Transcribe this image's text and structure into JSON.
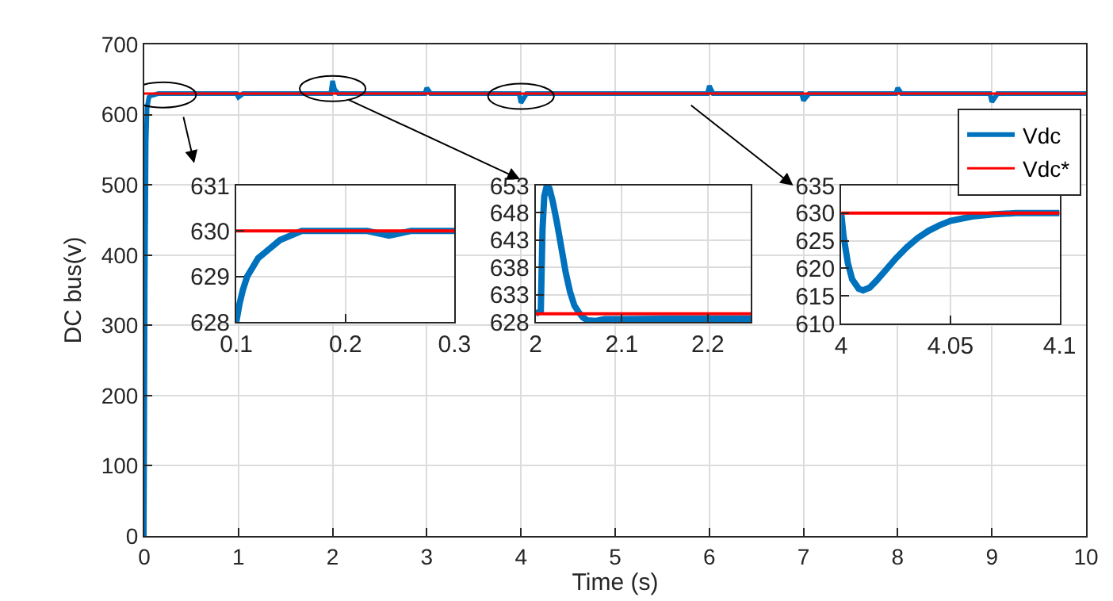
{
  "chart_data": [
    {
      "type": "line",
      "xlabel": "Time (s)",
      "ylabel": "DC bus(v)",
      "xlim": [
        0,
        10
      ],
      "xticks": [
        0,
        1,
        2,
        3,
        4,
        5,
        6,
        7,
        8,
        9,
        10
      ],
      "ylim": [
        0,
        700
      ],
      "yticks": [
        0,
        100,
        200,
        300,
        400,
        500,
        600,
        700
      ],
      "grid": true,
      "legend": "top right",
      "series": [
        {
          "name": "Vdc",
          "color": "#0072bd",
          "x": [
            0,
            0.01,
            0.02,
            0.03,
            0.05,
            0.07,
            0.1,
            0.15,
            0.98,
            1.0,
            1.05,
            1.98,
            2.0,
            2.02,
            2.06,
            2.98,
            3.0,
            3.04,
            3.98,
            4.0,
            4.01,
            4.06,
            5.98,
            6.0,
            6.04,
            6.98,
            7.0,
            7.01,
            7.06,
            7.98,
            8.0,
            8.04,
            8.98,
            9.0,
            9.01,
            9.06,
            10
          ],
          "values": [
            0,
            350,
            560,
            610,
            625,
            627,
            628,
            630,
            630,
            625,
            630,
            630,
            648,
            636,
            630,
            630,
            638,
            630,
            630,
            617,
            619,
            630,
            630,
            641,
            630,
            630,
            620,
            622,
            630,
            630,
            638,
            630,
            630,
            618,
            620,
            630,
            630
          ]
        },
        {
          "name": "Vdc*",
          "color": "#ff0000",
          "x": [
            0,
            10
          ],
          "values": [
            630,
            630
          ]
        }
      ]
    },
    {
      "type": "line",
      "xlim": [
        0.1,
        0.3
      ],
      "xticks": [
        0.1,
        0.2,
        0.3
      ],
      "ylim": [
        628,
        631
      ],
      "yticks": [
        628,
        629,
        630,
        631
      ],
      "grid": true,
      "series": [
        {
          "color": "#0072bd",
          "x": [
            0.1,
            0.103,
            0.106,
            0.11,
            0.115,
            0.12,
            0.13,
            0.14,
            0.15,
            0.16,
            0.18,
            0.2,
            0.22,
            0.24,
            0.26,
            0.28,
            0.3
          ],
          "values": [
            628.0,
            628.4,
            628.7,
            629.0,
            629.2,
            629.4,
            629.6,
            629.8,
            629.9,
            630.0,
            630.0,
            630.0,
            630.0,
            629.9,
            630.0,
            630.0,
            630.0
          ]
        },
        {
          "color": "#ff0000",
          "x": [
            0.1,
            0.3
          ],
          "values": [
            630,
            630
          ]
        }
      ]
    },
    {
      "type": "line",
      "xlim": [
        2,
        2.25
      ],
      "xticks": [
        2,
        2.1,
        2.2
      ],
      "ylim": [
        628,
        653
      ],
      "yticks": [
        628,
        633,
        638,
        643,
        648,
        653
      ],
      "grid": true,
      "series": [
        {
          "color": "#0072bd",
          "x": [
            2.0,
            2.006,
            2.008,
            2.01,
            2.013,
            2.016,
            2.02,
            2.025,
            2.03,
            2.035,
            2.04,
            2.045,
            2.05,
            2.055,
            2.06,
            2.07,
            2.08,
            2.1,
            2.15,
            2.2,
            2.25
          ],
          "values": [
            629.5,
            630,
            645,
            651,
            653,
            652.5,
            650,
            646,
            641.5,
            637,
            633.5,
            631,
            629.8,
            628.8,
            628.3,
            628.2,
            628.5,
            628.5,
            628.6,
            628.6,
            628.6
          ]
        },
        {
          "color": "#ff0000",
          "x": [
            2.0,
            2.25
          ],
          "values": [
            629.5,
            629.5
          ]
        }
      ]
    },
    {
      "type": "line",
      "xlim": [
        4,
        4.1
      ],
      "xticks": [
        4,
        4.05,
        4.1
      ],
      "ylim": [
        610,
        635
      ],
      "yticks": [
        610,
        615,
        620,
        625,
        630,
        635
      ],
      "grid": true,
      "series": [
        {
          "color": "#0072bd",
          "x": [
            4.0,
            4.001,
            4.003,
            4.005,
            4.008,
            4.01,
            4.013,
            4.016,
            4.02,
            4.025,
            4.03,
            4.035,
            4.04,
            4.045,
            4.05,
            4.06,
            4.07,
            4.08,
            4.1
          ],
          "values": [
            630,
            626,
            621,
            618,
            616.3,
            616,
            616.5,
            617.7,
            619.5,
            621.8,
            623.8,
            625.5,
            626.8,
            627.8,
            628.6,
            629.4,
            629.8,
            630,
            630
          ]
        },
        {
          "color": "#ff0000",
          "x": [
            4.0,
            4.1
          ],
          "values": [
            630,
            630
          ]
        }
      ]
    }
  ]
}
